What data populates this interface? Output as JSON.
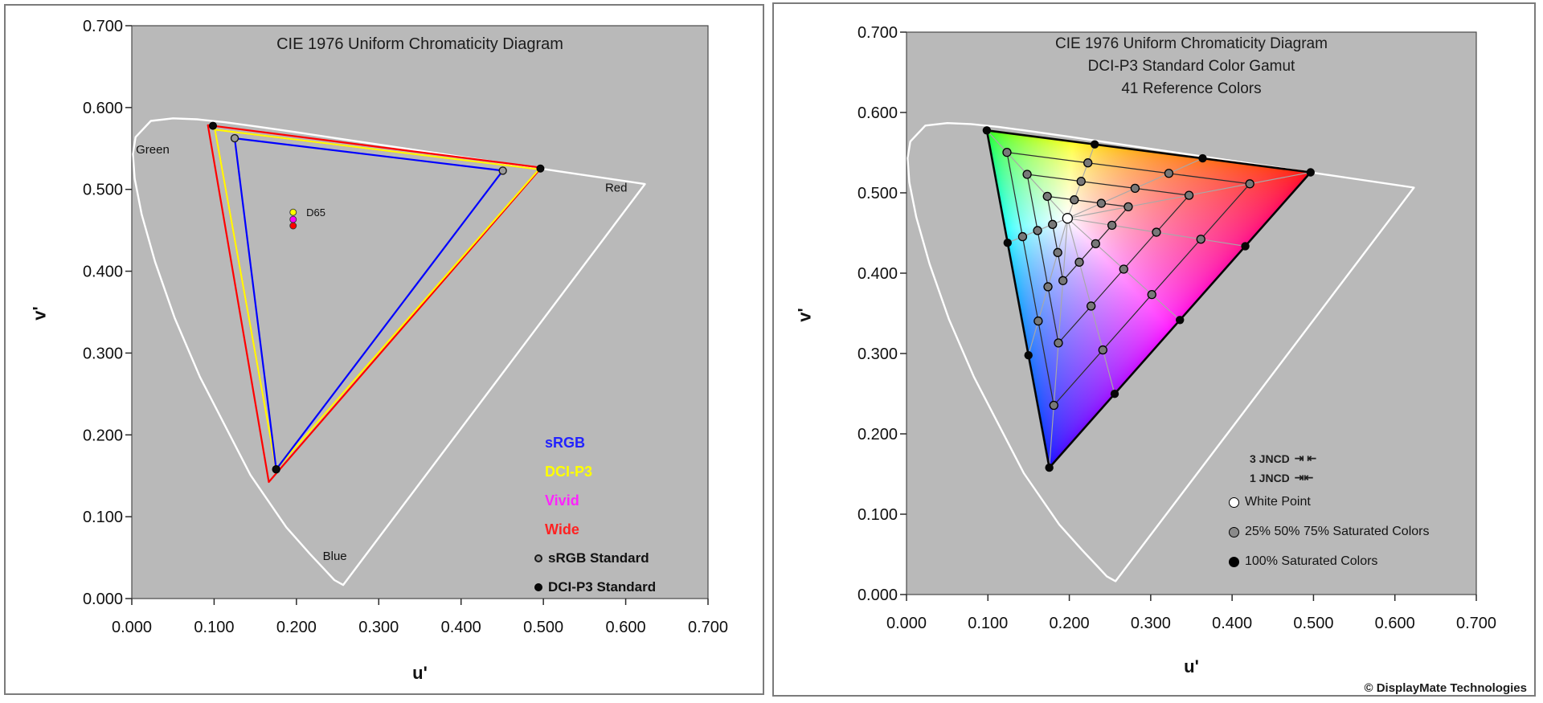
{
  "window": {
    "background": "#ffffff",
    "panel_border_color": "#7b7b7b",
    "plot_background": "#b9b9b9",
    "locus_color": "#ffffff",
    "tick_color": "#2a2a2a"
  },
  "chart_data": {
    "type": "line",
    "subtype": "chromaticity-diagram-pair",
    "axes": {
      "xlabel": "u'",
      "ylabel": "v'",
      "xlim": [
        0,
        0.7
      ],
      "ylim": [
        0,
        0.7
      ],
      "tick_step": 0.1,
      "x_tick_labels": [
        "0.000",
        "0.100",
        "0.200",
        "0.300",
        "0.400",
        "0.500",
        "0.600",
        "0.700"
      ],
      "y_tick_labels": [
        "0.000",
        "0.100",
        "0.200",
        "0.300",
        "0.400",
        "0.500",
        "0.600",
        "0.700"
      ],
      "grid": false
    },
    "locus_uv": [
      [
        0.2568,
        0.0166
      ],
      [
        0.2461,
        0.0226
      ],
      [
        0.2347,
        0.035
      ],
      [
        0.2161,
        0.0549
      ],
      [
        0.1877,
        0.0871
      ],
      [
        0.1441,
        0.151
      ],
      [
        0.0828,
        0.2708
      ],
      [
        0.0521,
        0.3427
      ],
      [
        0.0282,
        0.4117
      ],
      [
        0.0119,
        0.4699
      ],
      [
        0.0035,
        0.5131
      ],
      [
        0.0014,
        0.5432
      ],
      [
        0.0046,
        0.5638
      ],
      [
        0.0231,
        0.5837
      ],
      [
        0.0501,
        0.5868
      ],
      [
        0.0792,
        0.5856
      ],
      [
        0.1127,
        0.5821
      ],
      [
        0.1531,
        0.5766
      ],
      [
        0.2026,
        0.5694
      ],
      [
        0.2623,
        0.5604
      ],
      [
        0.3315,
        0.5501
      ],
      [
        0.4035,
        0.5393
      ],
      [
        0.4691,
        0.5296
      ],
      [
        0.5202,
        0.5219
      ],
      [
        0.5565,
        0.5165
      ],
      [
        0.6005,
        0.5099
      ],
      [
        0.6234,
        0.5065
      ]
    ],
    "charts": [
      {
        "title": "CIE 1976 Uniform Chromaticity Diagram",
        "annotations": [
          {
            "text": "Green",
            "uv": [
              0.005,
              0.549
            ],
            "small": false
          },
          {
            "text": "Red",
            "uv": [
              0.575,
              0.502
            ],
            "small": false
          },
          {
            "text": "Blue",
            "uv": [
              0.232,
              0.052
            ],
            "small": false
          },
          {
            "text": "D65",
            "uv": [
              0.212,
              0.472
            ],
            "small": true
          }
        ],
        "gamut_triangles": [
          {
            "name": "Vivid",
            "color": "#ff00ff",
            "uv": [
              [
                0.101,
                0.573
              ],
              [
                0.4945,
                0.5245
              ],
              [
                0.1754,
                0.1579
              ]
            ]
          },
          {
            "name": "Wide",
            "color": "#ff0000",
            "uv": [
              [
                0.0925,
                0.5785
              ],
              [
                0.4975,
                0.5265
              ],
              [
                0.1665,
                0.1425
              ]
            ]
          },
          {
            "name": "DCI-P3",
            "color": "#ffff00",
            "uv": [
              [
                0.101,
                0.573
              ],
              [
                0.4945,
                0.5245
              ],
              [
                0.1754,
                0.1579
              ]
            ]
          },
          {
            "name": "sRGB",
            "color": "#0000ff",
            "uv": [
              [
                0.125,
                0.5625
              ],
              [
                0.4507,
                0.5229
              ],
              [
                0.1754,
                0.1579
              ]
            ]
          }
        ],
        "standard_markers": {
          "srgb": {
            "label": "sRGB Standard",
            "color": "#9a9a9a",
            "uv": [
              [
                0.125,
                0.5625
              ],
              [
                0.4507,
                0.5229
              ],
              [
                0.1754,
                0.1579
              ]
            ]
          },
          "dcip3": {
            "label": "DCI-P3 Standard",
            "color": "#0a0a0a",
            "uv": [
              [
                0.0986,
                0.5777
              ],
              [
                0.4964,
                0.5255
              ],
              [
                0.1754,
                0.1579
              ]
            ]
          }
        },
        "white_point_markers": [
          {
            "name": "DCI-P3",
            "color": "#ffff00",
            "uv": [
              0.196,
              0.472
            ]
          },
          {
            "name": "Vivid",
            "color": "#ff00ff",
            "uv": [
              0.196,
              0.4633
            ]
          },
          {
            "name": "Wide",
            "color": "#ff0000",
            "uv": [
              0.196,
              0.4555
            ]
          }
        ],
        "legend": [
          {
            "label": "sRGB",
            "color": "#2222ff",
            "marker": "none"
          },
          {
            "label": "DCI-P3",
            "color": "#ffff00",
            "marker": "none"
          },
          {
            "label": "Vivid",
            "color": "#ff22ff",
            "marker": "none"
          },
          {
            "label": "Wide",
            "color": "#ff2222",
            "marker": "none"
          },
          {
            "label": "sRGB Standard",
            "color": "#111111",
            "marker": "gray-dot"
          },
          {
            "label": "DCI-P3 Standard",
            "color": "#111111",
            "marker": "black-dot"
          }
        ]
      },
      {
        "title_lines": [
          "CIE 1976 Uniform Chromaticity Diagram",
          "DCI-P3 Standard Color Gamut",
          "41 Reference Colors"
        ],
        "gamut": {
          "name": "DCI-P3",
          "green_uv": [
            0.0986,
            0.5777
          ],
          "red_uv": [
            0.4964,
            0.5255
          ],
          "blue_uv": [
            0.1754,
            0.1579
          ]
        },
        "white_point_uv": [
          0.1978,
          0.4683
        ],
        "reference_colors": {
          "count": 41,
          "saturation_levels": [
            0.25,
            0.5,
            0.75
          ],
          "hue_points_uv": [
            [
              0.0986,
              0.5777
            ],
            [
              0.2312,
              0.5603
            ],
            [
              0.3638,
              0.5429
            ],
            [
              0.4964,
              0.5255
            ],
            [
              0.4162,
              0.4336
            ],
            [
              0.3359,
              0.3417
            ],
            [
              0.2557,
              0.2498
            ],
            [
              0.1754,
              0.1579
            ],
            [
              0.1498,
              0.2978
            ],
            [
              0.1242,
              0.4378
            ]
          ]
        },
        "legend": [
          {
            "label": "3 JNCD",
            "glyph": "⇥ ⇤",
            "marker": "none"
          },
          {
            "label": "1 JNCD",
            "glyph": "⇥⇤",
            "marker": "none"
          },
          {
            "label": "White Point",
            "marker": "white-dot"
          },
          {
            "label": "25% 50% 75% Saturated Colors",
            "marker": "gray-dot"
          },
          {
            "label": "100% Saturated Colors",
            "marker": "black-dot"
          }
        ],
        "copyright": "© DisplayMate Technologies"
      }
    ]
  }
}
